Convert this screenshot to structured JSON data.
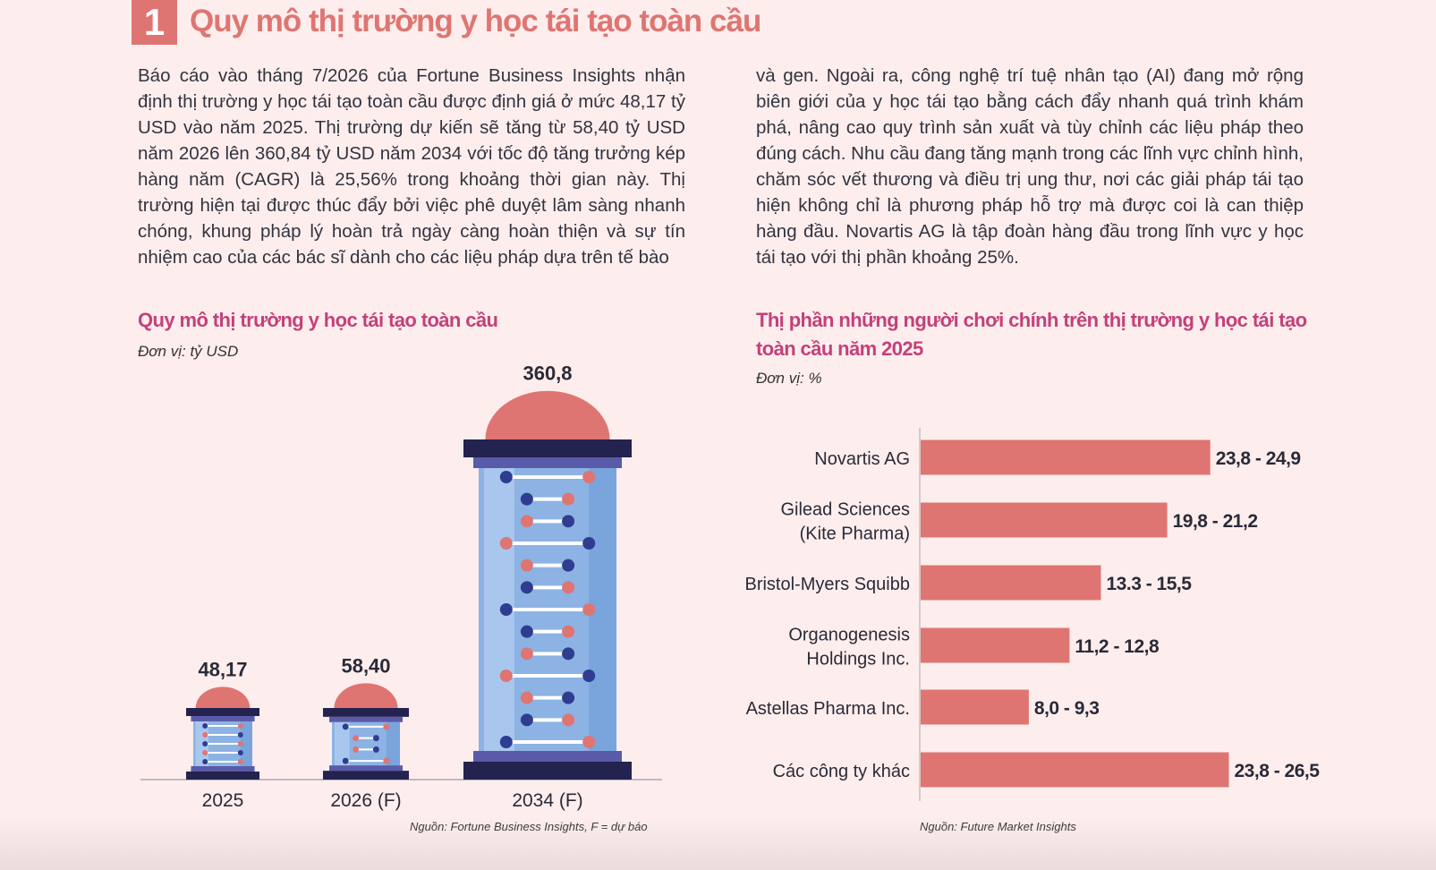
{
  "section": {
    "number": "1",
    "title": "Quy mô thị trường y học tái tạo toàn cầu"
  },
  "paragraph_left": "Báo cáo vào tháng 7/2026 của Fortune Business Insights nhận định thị trường y học tái tạo toàn cầu được định giá ở mức 48,17 tỷ USD vào năm 2025. Thị trường dự kiến sẽ tăng từ 58,40 tỷ USD năm 2026 lên 360,84 tỷ USD năm 2034 với tốc độ tăng trưởng kép hàng năm (CAGR) là 25,56% trong khoảng thời gian này. Thị trường hiện tại được thúc đẩy bởi việc phê duyệt lâm sàng nhanh chóng, khung pháp lý hoàn trả ngày càng hoàn thiện và sự tín nhiệm cao của các bác sĩ dành cho các liệu pháp dựa trên tế bào",
  "paragraph_right": "và gen. Ngoài ra, công nghệ trí tuệ nhân tạo (AI) đang mở rộng biên giới của y học tái tạo bằng cách đẩy nhanh quá trình khám phá, nâng cao quy trình sản xuất và tùy chỉnh các liệu pháp theo đúng cách. Nhu cầu đang tăng mạnh trong các lĩnh vực chỉnh hình, chăm sóc vết thương và điều trị ung thư, nơi các giải pháp tái tạo hiện không chỉ là phương pháp hỗ trợ mà được coi là can thiệp hàng đầu. Novartis  AG là tập đoàn hàng đầu trong lĩnh vực y học tái tạo với thị phần khoảng 25%.",
  "colors": {
    "accent": "#df7572",
    "title": "#c4407a",
    "navy": "#24224f",
    "tube": "#8cb3e4",
    "blue_dot": "#2e3d8f"
  },
  "chart_data": [
    {
      "type": "bar",
      "title": "Quy mô thị trường y học tái tạo toàn cầu",
      "unit": "Đơn vị: tỷ USD",
      "categories": [
        "2025",
        "2026 (F)",
        "2034 (F)"
      ],
      "values": [
        48.17,
        58.4,
        360.8
      ],
      "value_labels": [
        "48,17",
        "58,40",
        "360,8"
      ],
      "source": "Nguồn: Fortune Business Insights, F = dự báo"
    },
    {
      "type": "bar",
      "orientation": "horizontal",
      "title": "Thị phần những người chơi chính trên thị trường y học tái tạo toàn cầu năm 2025",
      "unit": "Đơn vị: %",
      "categories": [
        [
          "Novartis AG"
        ],
        [
          "Gilead Sciences",
          "(Kite Pharma)"
        ],
        [
          "Bristol-Myers Squibb"
        ],
        [
          "Organogenesis",
          "Holdings Inc."
        ],
        [
          "Astellas Pharma Inc."
        ],
        [
          "Các công ty khác"
        ]
      ],
      "ranges": [
        [
          23.8,
          24.9
        ],
        [
          19.8,
          21.2
        ],
        [
          13.3,
          15.5
        ],
        [
          11.2,
          12.8
        ],
        [
          8.0,
          9.3
        ],
        [
          23.8,
          26.5
        ]
      ],
      "value_labels": [
        "23,8 - 24,9",
        "19,8 - 21,2",
        "13.3 - 15,5",
        "11,2 - 12,8",
        "8,0 - 9,3",
        "23,8 - 26,5"
      ],
      "source": "Nguồn: Future Market Insights"
    }
  ]
}
